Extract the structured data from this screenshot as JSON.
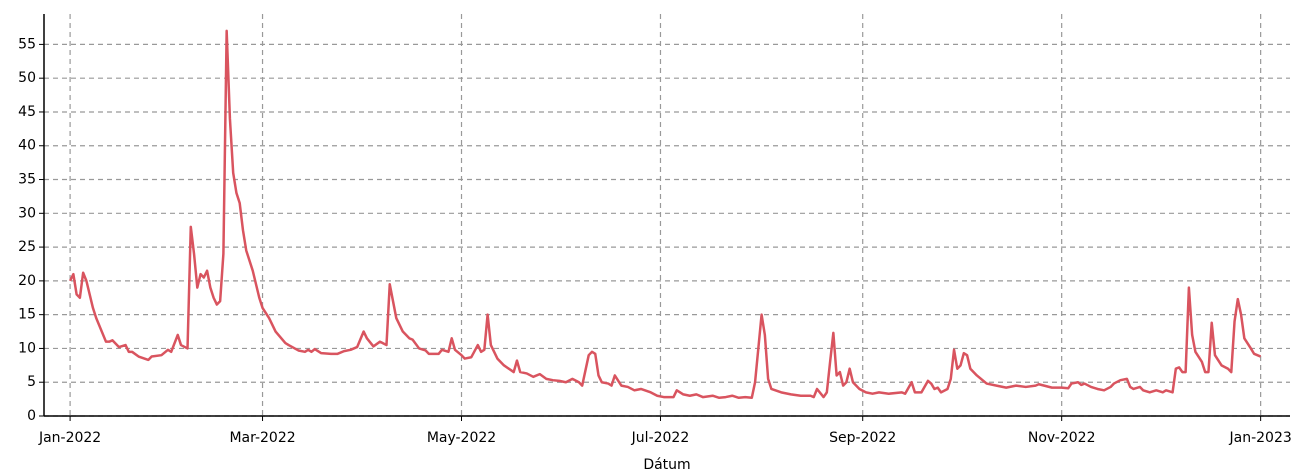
{
  "chart_data": {
    "type": "line",
    "x_label": "Dátum",
    "x": [
      0,
      1,
      2,
      3,
      4,
      5,
      7,
      8,
      11,
      12,
      13,
      15,
      17,
      18,
      19,
      21,
      24,
      25,
      28,
      30,
      31,
      33,
      34,
      36,
      37,
      38,
      39,
      40,
      41,
      42,
      43,
      44,
      45,
      46,
      47,
      48,
      49,
      50,
      51,
      52,
      53,
      54,
      56,
      57,
      58,
      59,
      61,
      63,
      66,
      67,
      70,
      72,
      73,
      74,
      75,
      77,
      80,
      82,
      84,
      86,
      88,
      90,
      91,
      93,
      95,
      97,
      98,
      99,
      100,
      102,
      104,
      105,
      107,
      109,
      110,
      113,
      114,
      116,
      117,
      118,
      120,
      121,
      123,
      125,
      126,
      127,
      128,
      129,
      130,
      131,
      133,
      136,
      137,
      138,
      140,
      142,
      144,
      146,
      148,
      150,
      152,
      154,
      156,
      157,
      159,
      160,
      161,
      162,
      163,
      165,
      166,
      167,
      169,
      171,
      173,
      175,
      178,
      180,
      182,
      185,
      186,
      188,
      190,
      192,
      194,
      197,
      199,
      201,
      203,
      205,
      207,
      209,
      210,
      211,
      212,
      213,
      214,
      215,
      218,
      221,
      224,
      227,
      228,
      229,
      231,
      232,
      233,
      234,
      235,
      236,
      237,
      238,
      239,
      240,
      242,
      244,
      246,
      248,
      251,
      255,
      256,
      258,
      259,
      261,
      263,
      264,
      265,
      266,
      267,
      269,
      270,
      271,
      272,
      273,
      274,
      275,
      276,
      278,
      281,
      284,
      287,
      290,
      293,
      296,
      297,
      301,
      304,
      306,
      307,
      309,
      310,
      311,
      313,
      315,
      317,
      319,
      320,
      322,
      324,
      325,
      326,
      328,
      329,
      331,
      333,
      335,
      336,
      338,
      339,
      340,
      341,
      342,
      343,
      344,
      345,
      347,
      348,
      349,
      350,
      351,
      353,
      355,
      356,
      357,
      358,
      359,
      360,
      362,
      363,
      365
    ],
    "series": [
      {
        "color": "#d9545f",
        "values": [
          20,
          21,
          18,
          17.5,
          21.2,
          20,
          16,
          14.5,
          11,
          11,
          11.2,
          10.2,
          10.5,
          9.5,
          9.5,
          8.8,
          8.3,
          8.8,
          9,
          9.8,
          9.5,
          12,
          10.5,
          10,
          28,
          24,
          19,
          21,
          20.5,
          21.5,
          19,
          17.5,
          16.5,
          17,
          24,
          57,
          44,
          36,
          33,
          31.5,
          27.5,
          24.5,
          21.5,
          19.5,
          17.5,
          16,
          14.5,
          12.5,
          10.8,
          10.5,
          9.7,
          9.5,
          9.8,
          9.5,
          9.9,
          9.3,
          9.2,
          9.2,
          9.6,
          9.8,
          10.2,
          12.5,
          11.5,
          10.3,
          11,
          10.5,
          19.5,
          17,
          14.5,
          12.5,
          11.5,
          11.3,
          10,
          9.7,
          9.2,
          9.2,
          9.8,
          9.5,
          11.5,
          9.8,
          9,
          8.5,
          8.7,
          10.5,
          9.5,
          9.8,
          15,
          10.5,
          9.5,
          8.5,
          7.5,
          6.5,
          8.2,
          6.5,
          6.3,
          5.8,
          6.2,
          5.5,
          5.3,
          5.2,
          5,
          5.5,
          5,
          4.5,
          9,
          9.5,
          9.2,
          6,
          5,
          4.8,
          4.5,
          6,
          4.5,
          4.3,
          3.8,
          4,
          3.5,
          3,
          2.8,
          2.8,
          3.8,
          3.2,
          3,
          3.2,
          2.8,
          3,
          2.7,
          2.8,
          3,
          2.7,
          2.8,
          2.7,
          5,
          10,
          15,
          12,
          5.5,
          4,
          3.5,
          3.2,
          3,
          3,
          2.8,
          4,
          2.8,
          3.5,
          8,
          12.3,
          6,
          6.5,
          4.5,
          5,
          7,
          5,
          4,
          3.5,
          3.3,
          3.5,
          3.3,
          3.5,
          3.3,
          5,
          3.5,
          3.5,
          5.2,
          4.8,
          4,
          4.2,
          3.5,
          4,
          5.5,
          9.8,
          7,
          7.5,
          9.3,
          9,
          7,
          6,
          4.8,
          4.5,
          4.2,
          4.5,
          4.3,
          4.5,
          4.7,
          4.2,
          4.2,
          4.1,
          4.8,
          5,
          4.6,
          4.8,
          4.3,
          4,
          3.8,
          4.3,
          4.8,
          5.3,
          5.5,
          4.3,
          4,
          4.3,
          3.8,
          3.5,
          3.8,
          3.5,
          3.8,
          3.5,
          7,
          7.2,
          6.5,
          6.5,
          19,
          12,
          9.5,
          8,
          6.5,
          6.5,
          13.8,
          9,
          7.5,
          7,
          6.5,
          14,
          17.3,
          15,
          11.5,
          10,
          9.2,
          8.8
        ]
      }
    ],
    "xlim": [
      -8,
      374
    ],
    "xticks": [
      {
        "value": 0,
        "label": "Jan-2022"
      },
      {
        "value": 59,
        "label": "Mar-2022"
      },
      {
        "value": 120,
        "label": "May-2022"
      },
      {
        "value": 181,
        "label": "Jul-2022"
      },
      {
        "value": 243,
        "label": "Sep-2022"
      },
      {
        "value": 304,
        "label": "Nov-2022"
      },
      {
        "value": 365,
        "label": "Jan-2023"
      }
    ],
    "ylim": [
      0,
      59.5
    ],
    "yticks": [
      0,
      5,
      10,
      15,
      20,
      25,
      30,
      35,
      40,
      45,
      50,
      55
    ],
    "grid": true
  }
}
